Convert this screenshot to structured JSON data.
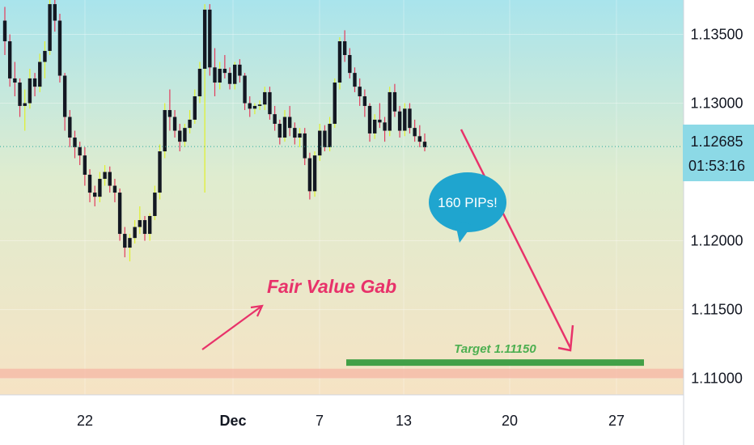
{
  "chart_data": {
    "type": "candlestick",
    "symbol_price": "1.12685",
    "countdown": "01:53:16",
    "y_ticks": [
      "1.13500",
      "1.13000",
      "1.12000",
      "1.11500",
      "1.11000"
    ],
    "x_ticks": [
      "22",
      "Dec",
      "7",
      "13",
      "20",
      "27"
    ],
    "ylim": [
      1.1088,
      1.1375
    ],
    "fvg_zone": [
      1.11,
      1.1107
    ],
    "target_price": 1.1115,
    "annotations": {
      "fair_value_gap_label": "Fair Value Gab",
      "pips_bubble": "160 PIPs!",
      "target_label": "Target 1.11150"
    },
    "candles": [
      [
        1.136,
        1.137,
        1.1335,
        1.1345
      ],
      [
        1.1345,
        1.135,
        1.1312,
        1.1318
      ],
      [
        1.1318,
        1.133,
        1.1305,
        1.1315
      ],
      [
        1.1315,
        1.1318,
        1.129,
        1.1298
      ],
      [
        1.1298,
        1.131,
        1.128,
        1.13
      ],
      [
        1.13,
        1.1325,
        1.1296,
        1.1318
      ],
      [
        1.1318,
        1.1322,
        1.1305,
        1.1312
      ],
      [
        1.1312,
        1.1336,
        1.1308,
        1.133
      ],
      [
        1.133,
        1.1345,
        1.1318,
        1.1338
      ],
      [
        1.1338,
        1.1378,
        1.1335,
        1.1372
      ],
      [
        1.1372,
        1.1378,
        1.1352,
        1.136
      ],
      [
        1.136,
        1.1365,
        1.1315,
        1.132
      ],
      [
        1.132,
        1.1322,
        1.128,
        1.129
      ],
      [
        1.129,
        1.1295,
        1.1268,
        1.1275
      ],
      [
        1.1275,
        1.128,
        1.126,
        1.1268
      ],
      [
        1.1268,
        1.1272,
        1.1255,
        1.1262
      ],
      [
        1.1262,
        1.1268,
        1.124,
        1.1248
      ],
      [
        1.1248,
        1.1252,
        1.1228,
        1.1235
      ],
      [
        1.1235,
        1.124,
        1.1225,
        1.1232
      ],
      [
        1.1232,
        1.125,
        1.1228,
        1.1245
      ],
      [
        1.1245,
        1.1255,
        1.124,
        1.125
      ],
      [
        1.125,
        1.1254,
        1.1235,
        1.124
      ],
      [
        1.124,
        1.1245,
        1.1228,
        1.1235
      ],
      [
        1.1235,
        1.1238,
        1.12,
        1.1205
      ],
      [
        1.1205,
        1.121,
        1.1188,
        1.1195
      ],
      [
        1.1195,
        1.1205,
        1.1185,
        1.1202
      ],
      [
        1.1202,
        1.1215,
        1.1198,
        1.121
      ],
      [
        1.121,
        1.1225,
        1.1205,
        1.1215
      ],
      [
        1.1215,
        1.1218,
        1.12,
        1.1205
      ],
      [
        1.1205,
        1.122,
        1.12,
        1.1218
      ],
      [
        1.1218,
        1.124,
        1.1215,
        1.1235
      ],
      [
        1.1235,
        1.127,
        1.123,
        1.1265
      ],
      [
        1.1265,
        1.13,
        1.126,
        1.1295
      ],
      [
        1.1295,
        1.131,
        1.128,
        1.129
      ],
      [
        1.129,
        1.1295,
        1.1275,
        1.128
      ],
      [
        1.128,
        1.1285,
        1.1265,
        1.1272
      ],
      [
        1.1272,
        1.1285,
        1.1268,
        1.1282
      ],
      [
        1.1282,
        1.1295,
        1.1278,
        1.1288
      ],
      [
        1.1288,
        1.131,
        1.1285,
        1.1305
      ],
      [
        1.1305,
        1.133,
        1.13,
        1.1325
      ],
      [
        1.1325,
        1.1372,
        1.1235,
        1.1368
      ],
      [
        1.1368,
        1.1372,
        1.132,
        1.1326
      ],
      [
        1.1326,
        1.134,
        1.1305,
        1.1315
      ],
      [
        1.1315,
        1.133,
        1.131,
        1.1325
      ],
      [
        1.1325,
        1.1335,
        1.1318,
        1.1322
      ],
      [
        1.1322,
        1.1326,
        1.131,
        1.1314
      ],
      [
        1.1314,
        1.133,
        1.131,
        1.1328
      ],
      [
        1.1328,
        1.1332,
        1.1315,
        1.132
      ],
      [
        1.132,
        1.1322,
        1.1295,
        1.13
      ],
      [
        1.13,
        1.1305,
        1.129,
        1.1296
      ],
      [
        1.1296,
        1.13,
        1.1292,
        1.1298
      ],
      [
        1.1298,
        1.1302,
        1.1295,
        1.1299
      ],
      [
        1.1299,
        1.1312,
        1.1295,
        1.1308
      ],
      [
        1.1308,
        1.1312,
        1.1288,
        1.1292
      ],
      [
        1.1292,
        1.1298,
        1.128,
        1.1285
      ],
      [
        1.1285,
        1.1288,
        1.127,
        1.1275
      ],
      [
        1.1275,
        1.1295,
        1.1272,
        1.129
      ],
      [
        1.129,
        1.1298,
        1.1276,
        1.1282
      ],
      [
        1.1282,
        1.1286,
        1.127,
        1.1275
      ],
      [
        1.1275,
        1.1282,
        1.1268,
        1.1278
      ],
      [
        1.1278,
        1.1282,
        1.1255,
        1.126
      ],
      [
        1.126,
        1.1264,
        1.123,
        1.1236
      ],
      [
        1.1236,
        1.1265,
        1.1232,
        1.1262
      ],
      [
        1.1262,
        1.1285,
        1.1258,
        1.128
      ],
      [
        1.128,
        1.1284,
        1.1265,
        1.1268
      ],
      [
        1.1268,
        1.129,
        1.1265,
        1.1285
      ],
      [
        1.1285,
        1.1318,
        1.1282,
        1.1315
      ],
      [
        1.1315,
        1.1348,
        1.131,
        1.1345
      ],
      [
        1.1345,
        1.1353,
        1.133,
        1.1335
      ],
      [
        1.1335,
        1.134,
        1.1318,
        1.1322
      ],
      [
        1.1322,
        1.1326,
        1.1308,
        1.1312
      ],
      [
        1.1312,
        1.1318,
        1.1298,
        1.1305
      ],
      [
        1.1305,
        1.131,
        1.129,
        1.1298
      ],
      [
        1.1298,
        1.13,
        1.1272,
        1.1278
      ],
      [
        1.1278,
        1.1292,
        1.1274,
        1.1288
      ],
      [
        1.1288,
        1.13,
        1.1282,
        1.1286
      ],
      [
        1.1286,
        1.129,
        1.1272,
        1.128
      ],
      [
        1.128,
        1.1312,
        1.1276,
        1.1308
      ],
      [
        1.1308,
        1.1314,
        1.129,
        1.1294
      ],
      [
        1.1294,
        1.1298,
        1.1275,
        1.128
      ],
      [
        1.128,
        1.13,
        1.1276,
        1.1296
      ],
      [
        1.1296,
        1.13,
        1.1278,
        1.1282
      ],
      [
        1.1282,
        1.1288,
        1.1272,
        1.1276
      ],
      [
        1.1276,
        1.1284,
        1.1268,
        1.1272
      ],
      [
        1.1272,
        1.1278,
        1.1265,
        1.1268
      ]
    ]
  }
}
